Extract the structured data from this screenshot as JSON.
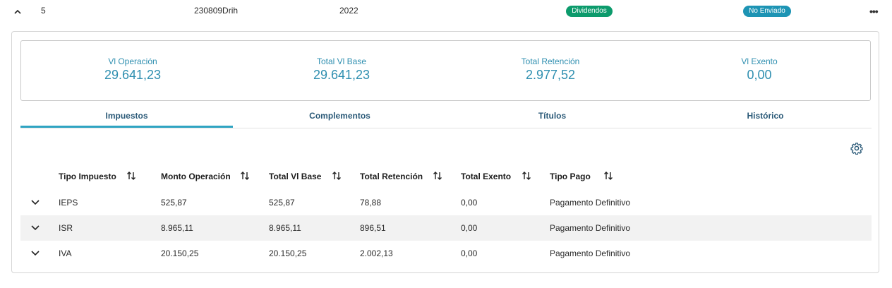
{
  "record": {
    "index": "5",
    "document": "230809Drih",
    "year": "2022",
    "type_badge": "Dividendos",
    "status_badge": "No Enviado",
    "more_label": "•••"
  },
  "summary": [
    {
      "label": "Vl Operación",
      "value": "29.641,23"
    },
    {
      "label": "Total Vl Base",
      "value": "29.641,23"
    },
    {
      "label": "Total Retención",
      "value": "2.977,52"
    },
    {
      "label": "Vl Exento",
      "value": "0,00"
    }
  ],
  "tabs": [
    {
      "label": "Impuestos",
      "active": true
    },
    {
      "label": "Complementos"
    },
    {
      "label": "Títulos"
    },
    {
      "label": "Histórico"
    }
  ],
  "table": {
    "columns": [
      "Tipo Impuesto",
      "Monto Operación",
      "Total Vl Base",
      "Total Retención",
      "Total Exento",
      "Tipo Pago"
    ],
    "rows": [
      [
        "IEPS",
        "525,87",
        "525,87",
        "78,88",
        "0,00",
        "Pagamento Definitivo"
      ],
      [
        "ISR",
        "8.965,11",
        "8.965,11",
        "896,51",
        "0,00",
        "Pagamento Definitivo"
      ],
      [
        "IVA",
        "20.150,25",
        "20.150,25",
        "2.002,13",
        "0,00",
        "Pagamento Definitivo"
      ]
    ]
  },
  "colors": {
    "accent": "#2f8fb0",
    "tab_text": "#2b5a78",
    "green_badge": "#0c9b6c",
    "blue_badge": "#1d94b4"
  },
  "icons": [
    "chevron-up-icon",
    "more-icon",
    "gear-icon",
    "sort-icon",
    "chevron-down-icon"
  ]
}
